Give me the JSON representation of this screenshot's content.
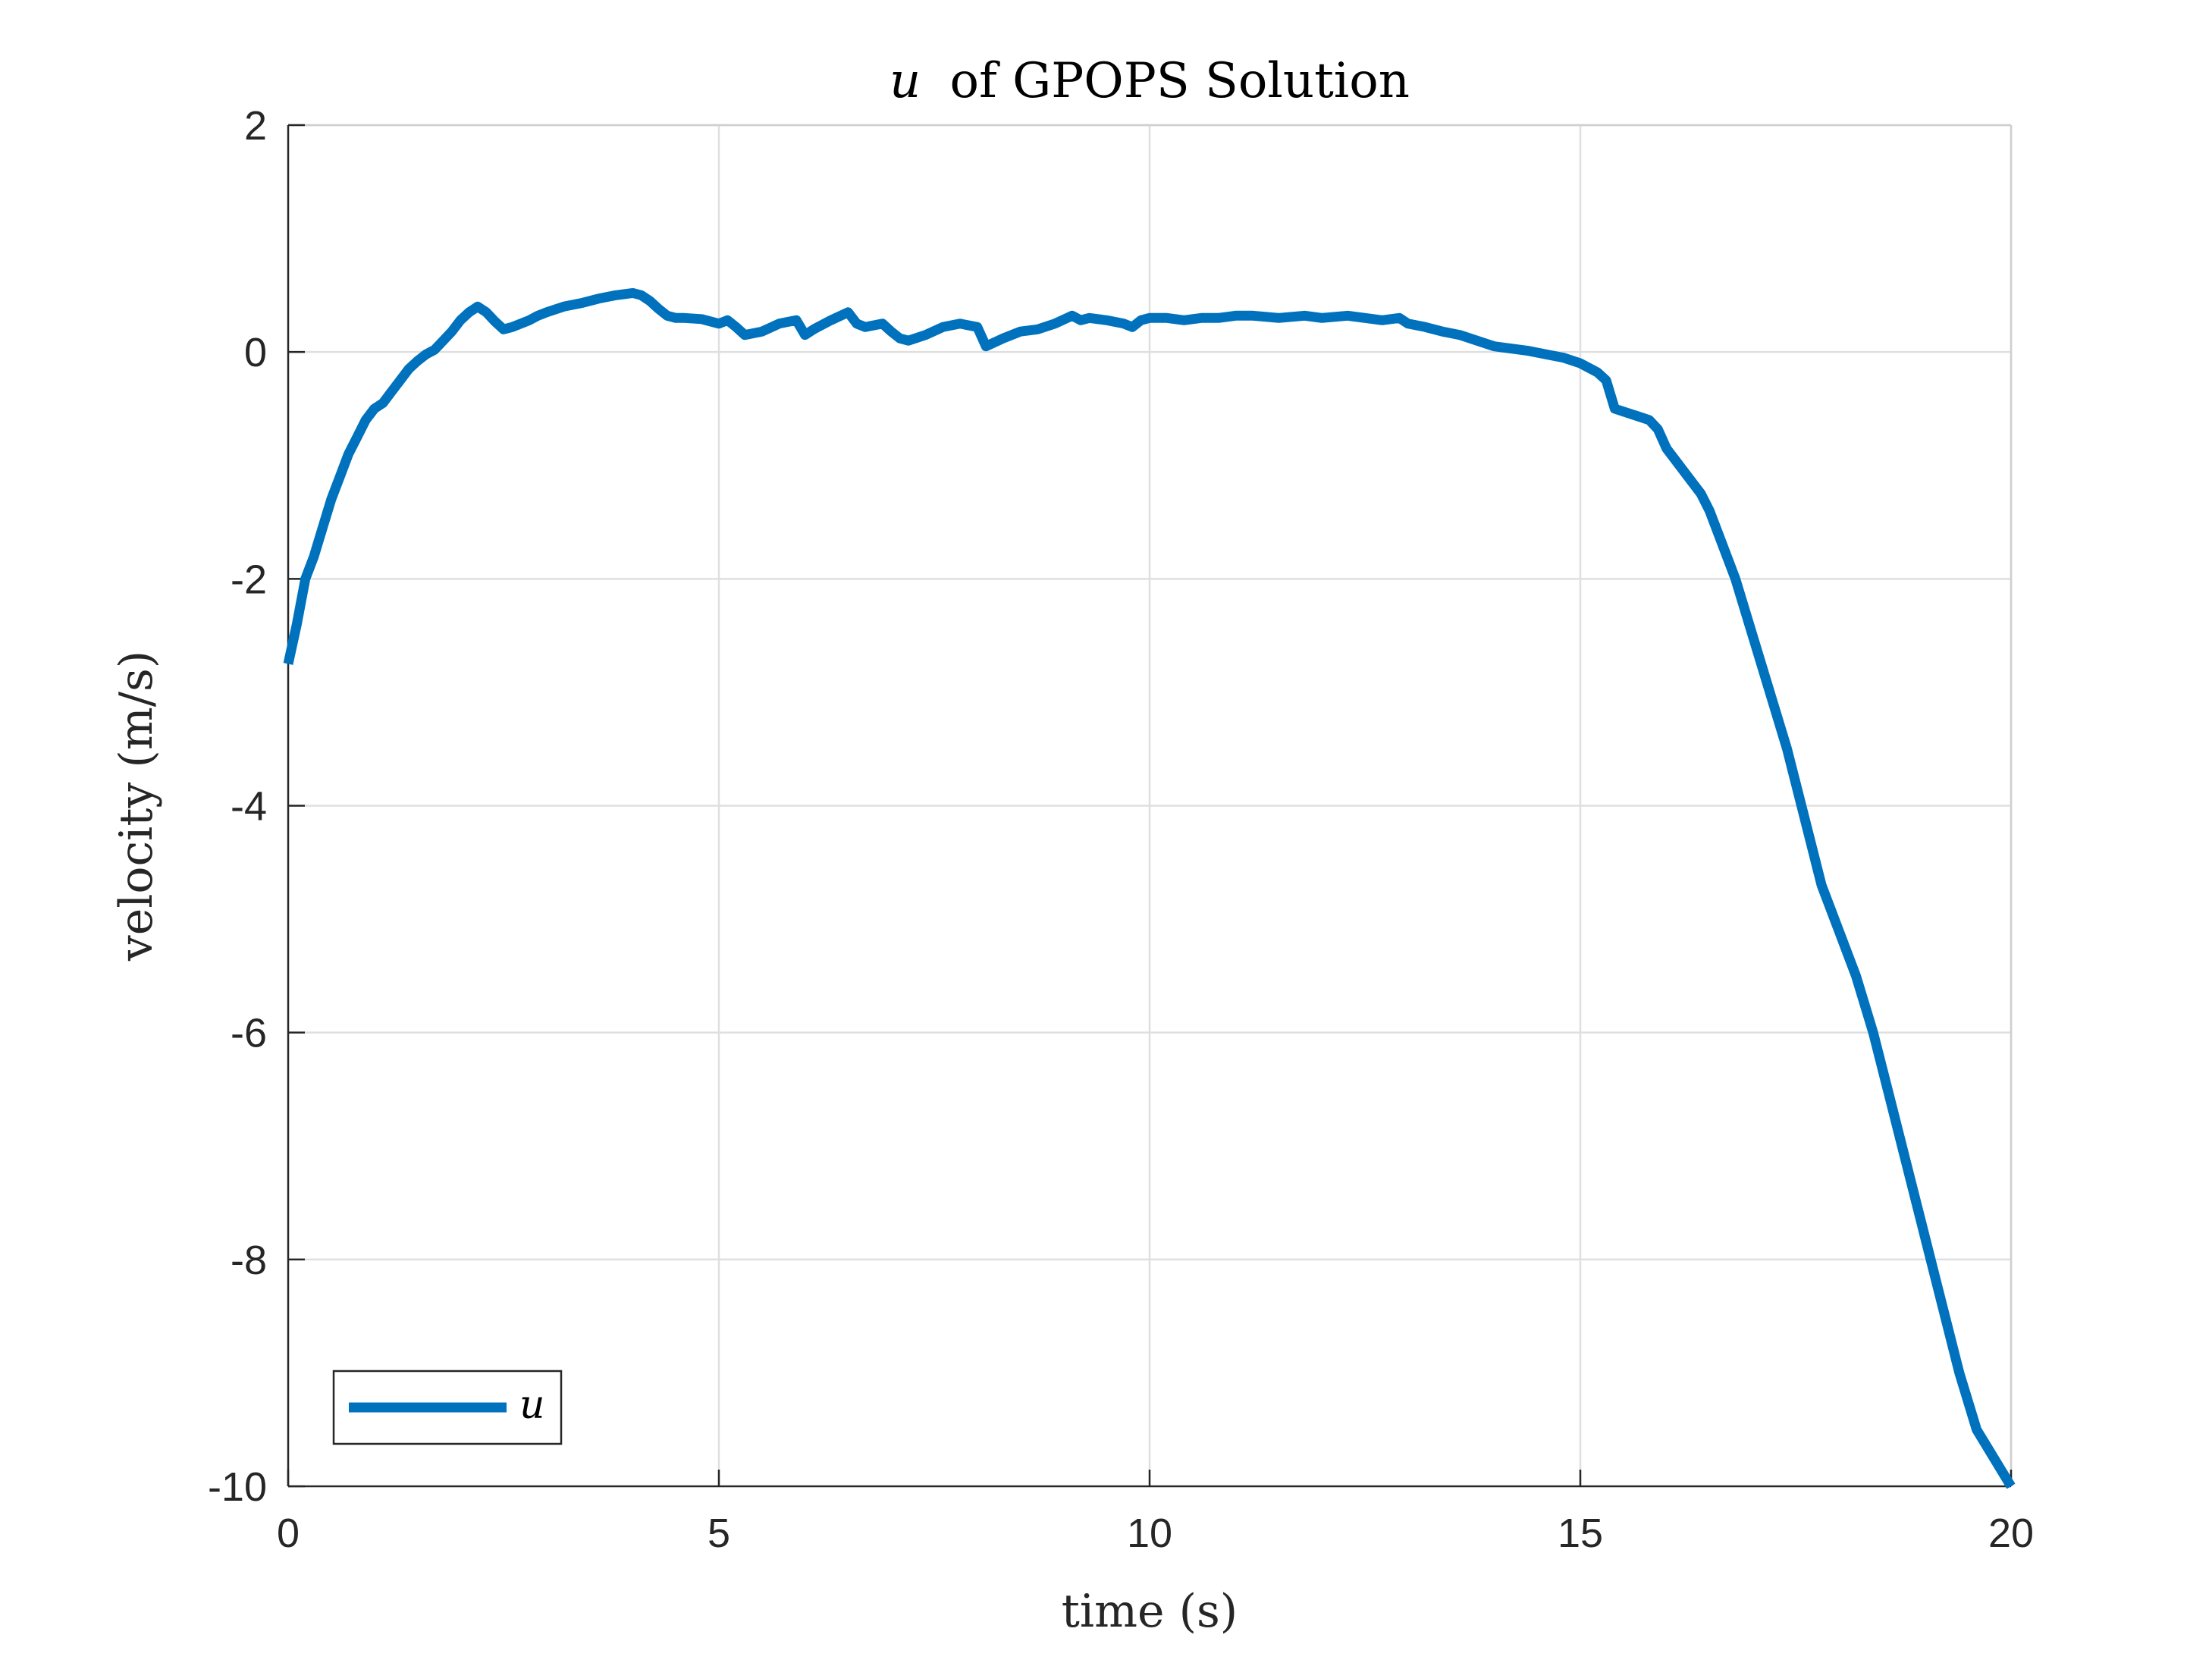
{
  "chart_data": {
    "type": "line",
    "title": "u of GPOPS Solution",
    "title_italic_part": "u",
    "title_rest": "of GPOPS Solution",
    "xlabel": "time (s)",
    "ylabel": "velocity (m/s)",
    "xlim": [
      0,
      20
    ],
    "ylim": [
      -10,
      2
    ],
    "xticks": [
      0,
      5,
      10,
      15,
      20
    ],
    "yticks": [
      -10,
      -8,
      -6,
      -4,
      -2,
      0,
      2
    ],
    "xtick_labels": [
      "0",
      "5",
      "10",
      "15",
      "20"
    ],
    "ytick_labels": [
      "-10",
      "-8",
      "-6",
      "-4",
      "-2",
      "0",
      "2"
    ],
    "grid": true,
    "legend_position": "bottom-left",
    "series": [
      {
        "name": "u",
        "color": "#0072BD",
        "x": [
          0,
          0.1,
          0.2,
          0.3,
          0.4,
          0.5,
          0.6,
          0.7,
          0.8,
          0.9,
          1.0,
          1.1,
          1.2,
          1.3,
          1.4,
          1.5,
          1.6,
          1.7,
          1.8,
          1.9,
          2.0,
          2.1,
          2.2,
          2.3,
          2.4,
          2.5,
          2.6,
          2.7,
          2.8,
          2.9,
          3.0,
          3.2,
          3.4,
          3.6,
          3.8,
          4.0,
          4.1,
          4.2,
          4.3,
          4.4,
          4.5,
          4.6,
          4.8,
          5.0,
          5.1,
          5.2,
          5.3,
          5.5,
          5.7,
          5.9,
          6.0,
          6.1,
          6.3,
          6.5,
          6.6,
          6.7,
          6.9,
          7.0,
          7.1,
          7.2,
          7.4,
          7.6,
          7.8,
          8.0,
          8.1,
          8.3,
          8.5,
          8.7,
          8.9,
          9.1,
          9.2,
          9.3,
          9.5,
          9.7,
          9.8,
          9.9,
          10.0,
          10.2,
          10.4,
          10.6,
          10.8,
          11.0,
          11.2,
          11.5,
          11.8,
          12.0,
          12.3,
          12.5,
          12.7,
          12.9,
          13.0,
          13.2,
          13.4,
          13.6,
          13.8,
          14.0,
          14.2,
          14.4,
          14.6,
          14.8,
          15.0,
          15.2,
          15.3,
          15.4,
          15.6,
          15.8,
          15.9,
          16.0,
          16.2,
          16.4,
          16.5,
          16.6,
          16.8,
          17.0,
          17.2,
          17.4,
          17.6,
          17.8,
          18.0,
          18.2,
          18.4,
          18.6,
          18.8,
          19.0,
          19.2,
          19.4,
          19.6,
          19.8,
          20.0
        ],
        "y": [
          -2.75,
          -2.4,
          -2.0,
          -1.8,
          -1.55,
          -1.3,
          -1.1,
          -0.9,
          -0.75,
          -0.6,
          -0.5,
          -0.45,
          -0.35,
          -0.25,
          -0.15,
          -0.08,
          -0.02,
          0.02,
          0.1,
          0.18,
          0.28,
          0.35,
          0.4,
          0.35,
          0.27,
          0.2,
          0.22,
          0.25,
          0.28,
          0.32,
          0.35,
          0.4,
          0.43,
          0.47,
          0.5,
          0.52,
          0.5,
          0.45,
          0.38,
          0.32,
          0.3,
          0.3,
          0.29,
          0.25,
          0.28,
          0.22,
          0.15,
          0.18,
          0.25,
          0.28,
          0.15,
          0.2,
          0.28,
          0.35,
          0.25,
          0.22,
          0.25,
          0.18,
          0.12,
          0.1,
          0.15,
          0.22,
          0.25,
          0.22,
          0.05,
          0.12,
          0.18,
          0.2,
          0.25,
          0.32,
          0.28,
          0.3,
          0.28,
          0.25,
          0.22,
          0.28,
          0.3,
          0.3,
          0.28,
          0.3,
          0.3,
          0.32,
          0.32,
          0.3,
          0.32,
          0.3,
          0.32,
          0.3,
          0.28,
          0.3,
          0.25,
          0.22,
          0.18,
          0.15,
          0.1,
          0.05,
          0.03,
          0.01,
          -0.02,
          -0.05,
          -0.1,
          -0.18,
          -0.25,
          -0.5,
          -0.55,
          -0.6,
          -0.68,
          -0.85,
          -1.05,
          -1.25,
          -1.4,
          -1.6,
          -2.0,
          -2.5,
          -3.0,
          -3.5,
          -4.1,
          -4.7,
          -5.1,
          -5.5,
          -6.0,
          -6.6,
          -7.2,
          -7.8,
          -8.4,
          -9.0,
          -9.5,
          -9.75,
          -10.0
        ]
      }
    ]
  }
}
